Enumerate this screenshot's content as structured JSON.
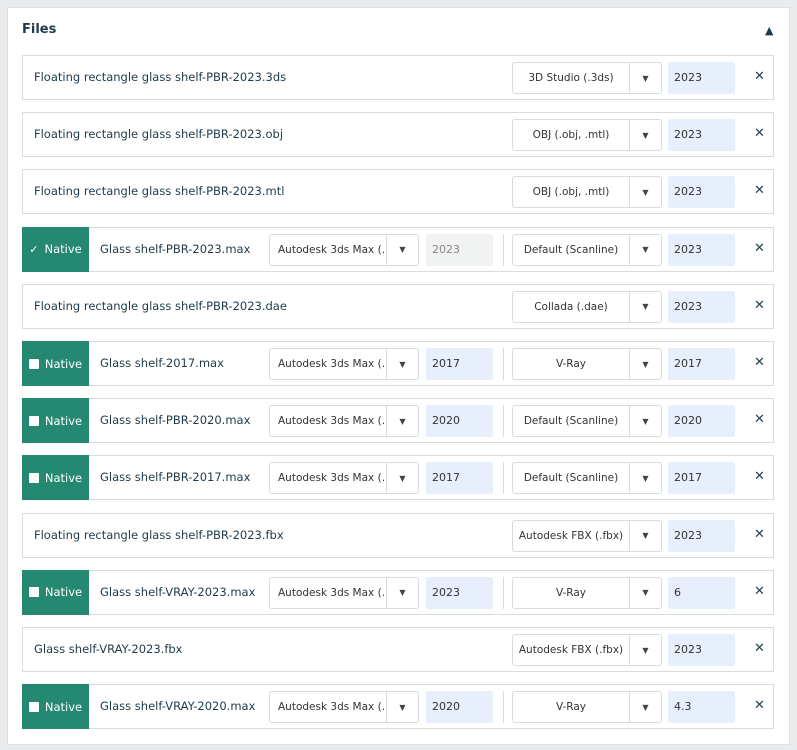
{
  "section": {
    "title": "Files",
    "collapse_icon": "chevron-up-icon"
  },
  "colors": {
    "native_badge": "#258870",
    "version_bg": "#e8effc"
  },
  "native_label": "Native",
  "files": [
    {
      "name": "Floating rectangle glass shelf-PBR-2023.3ds",
      "native": false,
      "format": "3D Studio (.3ds)",
      "version": "2023"
    },
    {
      "name": "Floating rectangle glass shelf-PBR-2023.obj",
      "native": false,
      "format": "OBJ (.obj, .mtl)",
      "version": "2023"
    },
    {
      "name": "Floating rectangle glass shelf-PBR-2023.mtl",
      "native": false,
      "format": "OBJ (.obj, .mtl)",
      "version": "2023"
    },
    {
      "name": "Glass shelf-PBR-2023.max",
      "native": true,
      "checked": true,
      "software": "Autodesk 3ds Max (...",
      "software_version": "2023",
      "software_version_disabled": true,
      "format": "Default (Scanline)",
      "version": "2023"
    },
    {
      "name": "Floating rectangle glass shelf-PBR-2023.dae",
      "native": false,
      "format": "Collada (.dae)",
      "version": "2023"
    },
    {
      "name": "Glass shelf-2017.max",
      "native": true,
      "checked": false,
      "software": "Autodesk 3ds Max (...",
      "software_version": "2017",
      "format": "V-Ray",
      "version": "2017"
    },
    {
      "name": "Glass shelf-PBR-2020.max",
      "native": true,
      "checked": false,
      "software": "Autodesk 3ds Max (...",
      "software_version": "2020",
      "format": "Default (Scanline)",
      "version": "2020"
    },
    {
      "name": "Glass shelf-PBR-2017.max",
      "native": true,
      "checked": false,
      "software": "Autodesk 3ds Max (...",
      "software_version": "2017",
      "format": "Default (Scanline)",
      "version": "2017"
    },
    {
      "name": "Floating rectangle glass shelf-PBR-2023.fbx",
      "native": false,
      "format": "Autodesk FBX (.fbx)",
      "version": "2023"
    },
    {
      "name": "Glass shelf-VRAY-2023.max",
      "native": true,
      "checked": false,
      "software": "Autodesk 3ds Max (...",
      "software_version": "2023",
      "format": "V-Ray",
      "version": "6"
    },
    {
      "name": "Glass shelf-VRAY-2023.fbx",
      "native": false,
      "format": "Autodesk FBX (.fbx)",
      "version": "2023"
    },
    {
      "name": "Glass shelf-VRAY-2020.max",
      "native": true,
      "checked": false,
      "software": "Autodesk 3ds Max (...",
      "software_version": "2020",
      "format": "V-Ray",
      "version": "4.3"
    }
  ]
}
